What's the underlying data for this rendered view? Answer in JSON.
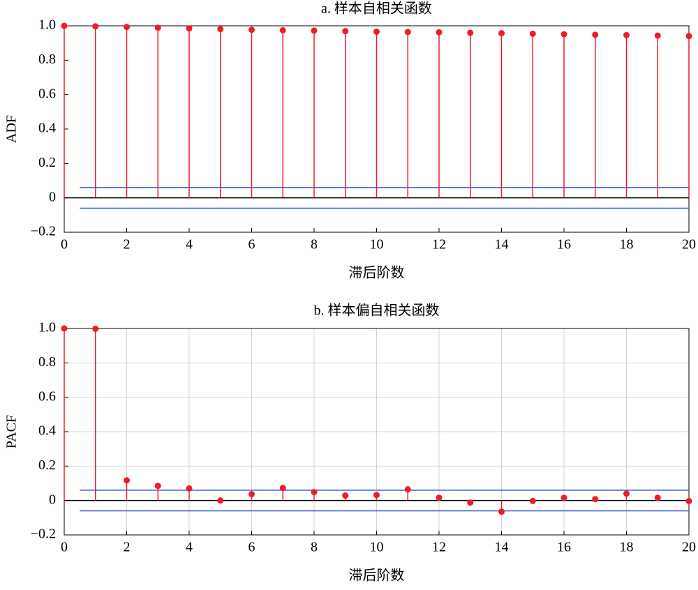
{
  "chart_data": [
    {
      "type": "stem",
      "title": "a. 样本自相关函数",
      "x_label": "滞后阶数",
      "y_label": "ADF",
      "x": [
        0,
        1,
        2,
        3,
        4,
        5,
        6,
        7,
        8,
        9,
        10,
        11,
        12,
        13,
        14,
        15,
        16,
        17,
        18,
        19,
        20
      ],
      "series": [
        {
          "name": "ADF",
          "color": "#ee1c25",
          "values": [
            1.0,
            0.997,
            0.993,
            0.989,
            0.985,
            0.981,
            0.977,
            0.974,
            0.972,
            0.969,
            0.966,
            0.964,
            0.962,
            0.959,
            0.957,
            0.954,
            0.951,
            0.948,
            0.946,
            0.943,
            0.94
          ]
        }
      ],
      "confidence_bounds": [
        0.06,
        -0.06
      ],
      "bound_color": "#2b55d8",
      "xlim": [
        0,
        20
      ],
      "xticks": [
        0,
        2,
        4,
        6,
        8,
        10,
        12,
        14,
        16,
        18,
        20
      ],
      "ylim": [
        -0.2,
        1.0
      ],
      "yticks": [
        {
          "value": -0.2,
          "label": "−0.2"
        },
        0,
        0.2,
        0.4,
        0.6,
        0.8,
        {
          "value": 1.0,
          "label": "1.0"
        }
      ],
      "grid": false
    },
    {
      "type": "stem",
      "title": "b. 样本偏自相关函数",
      "x_label": "滞后阶数",
      "y_label": "PACF",
      "x": [
        0,
        1,
        2,
        3,
        4,
        5,
        6,
        7,
        8,
        9,
        10,
        11,
        12,
        13,
        14,
        15,
        16,
        17,
        18,
        19,
        20
      ],
      "series": [
        {
          "name": "PACF",
          "color": "#ee1c25",
          "values": [
            1.0,
            0.998,
            0.117,
            0.085,
            0.07,
            0.0,
            0.037,
            0.073,
            0.049,
            0.029,
            0.032,
            0.065,
            0.016,
            -0.012,
            -0.065,
            -0.003,
            0.016,
            0.008,
            0.04,
            0.016,
            -0.003
          ]
        }
      ],
      "confidence_bounds": [
        0.06,
        -0.06
      ],
      "bound_color": "#2b55d8",
      "xlim": [
        0,
        20
      ],
      "xticks": [
        0,
        2,
        4,
        6,
        8,
        10,
        12,
        14,
        16,
        18,
        20
      ],
      "ylim": [
        -0.2,
        1.0
      ],
      "yticks": [
        {
          "value": -0.2,
          "label": "−0.2"
        },
        0,
        0.2,
        0.4,
        0.6,
        0.8,
        {
          "value": 1.0,
          "label": "1.0"
        }
      ],
      "grid": true
    }
  ]
}
